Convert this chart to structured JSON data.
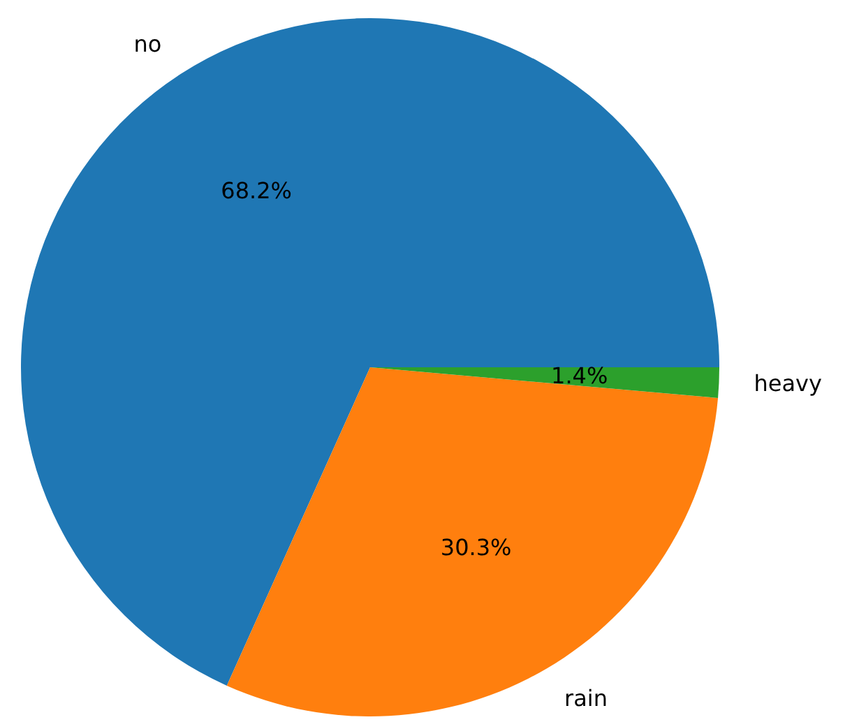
{
  "chart_data": {
    "type": "pie",
    "categories": [
      "no",
      "rain",
      "heavy"
    ],
    "values": [
      68.2,
      30.3,
      1.4
    ],
    "colors": [
      "#1f77b4",
      "#ff7f0e",
      "#2ca02c"
    ],
    "value_labels": [
      "68.2%",
      "30.3%",
      "1.4%"
    ]
  }
}
